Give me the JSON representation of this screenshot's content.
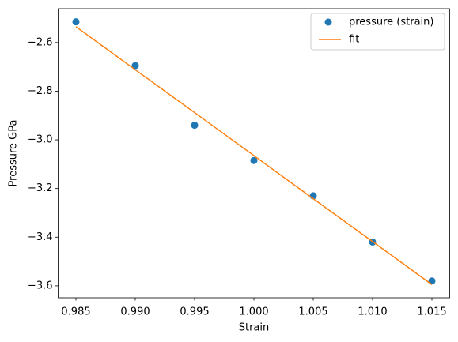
{
  "chart_data": {
    "type": "scatter",
    "x_label": "Strain",
    "y_label": "Pressure GPa",
    "x": [
      0.985,
      0.99,
      0.995,
      1.0,
      1.005,
      1.01,
      1.015
    ],
    "series": [
      {
        "name": "pressure (strain)",
        "type": "scatter",
        "color": "#1f77b4",
        "values": [
          -2.515,
          -2.695,
          -2.94,
          -3.085,
          -3.23,
          -3.42,
          -3.58
        ]
      },
      {
        "name": "fit",
        "type": "line",
        "color": "#ff7f0e",
        "values": [
          -2.535,
          -2.712,
          -2.888,
          -3.065,
          -3.242,
          -3.418,
          -3.595
        ]
      }
    ],
    "xlim": [
      0.9835,
      1.0165
    ],
    "ylim": [
      -3.649,
      -2.461
    ],
    "xticks": [
      0.985,
      {
        "value": 0.99,
        "label": "0.990"
      },
      0.995,
      {
        "value": 1.0,
        "label": "1.000"
      },
      1.005,
      {
        "value": 1.01,
        "label": "1.010"
      },
      1.015
    ],
    "yticks": [
      {
        "value": -3.6,
        "label": "−3.6"
      },
      {
        "value": -3.4,
        "label": "−3.4"
      },
      {
        "value": -3.2,
        "label": "−3.2"
      },
      {
        "value": -3.0,
        "label": "−3.0"
      },
      {
        "value": -2.8,
        "label": "−2.8"
      },
      {
        "value": -2.6,
        "label": "−2.6"
      }
    ],
    "grid": false,
    "legend": "upper right"
  }
}
